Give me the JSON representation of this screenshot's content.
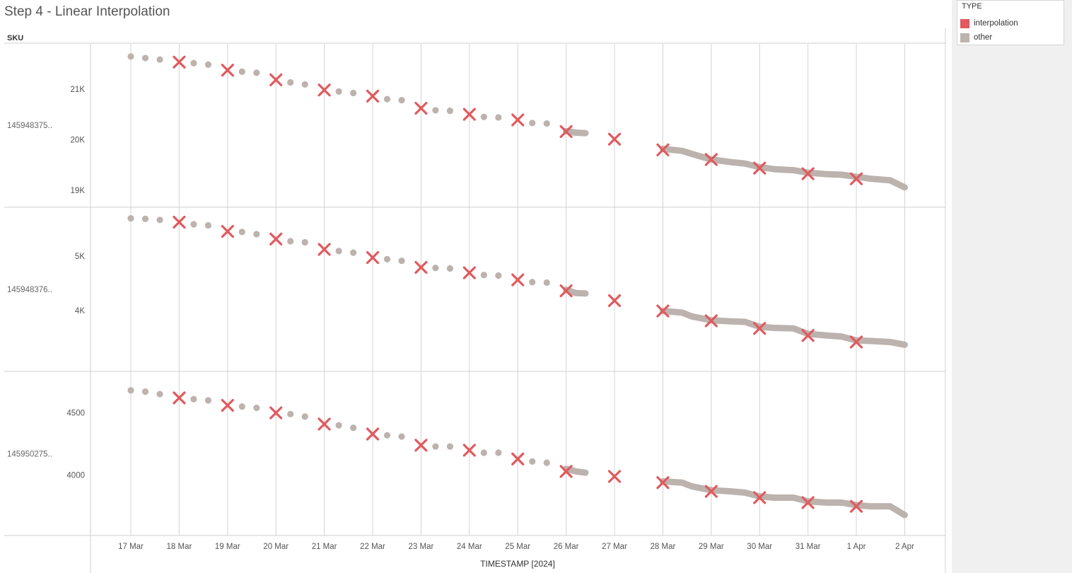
{
  "page": {
    "title": "Step 4 - Linear Interpolation"
  },
  "legend": {
    "title": "TYPE",
    "items": [
      {
        "label": "interpolation",
        "color": "#e05a5e"
      },
      {
        "label": "other",
        "color": "#bcb2ae"
      }
    ]
  },
  "chart_data": {
    "type": "scatter",
    "title": "Step 4 - Linear Interpolation",
    "row_header": "SKU",
    "xlabel": "TIMESTAMP [2024]",
    "x_categories": [
      "17 Mar",
      "18 Mar",
      "19 Mar",
      "20 Mar",
      "21 Mar",
      "22 Mar",
      "23 Mar",
      "24 Mar",
      "25 Mar",
      "26 Mar",
      "27 Mar",
      "28 Mar",
      "29 Mar",
      "30 Mar",
      "31 Mar",
      "1 Apr",
      "2 Apr"
    ],
    "x_range": [
      17,
      33
    ],
    "grid": true,
    "legend_position": "top-right",
    "marker_styles": {
      "interpolation": "x",
      "other": "circle"
    },
    "panels": [
      {
        "sku": "145948375..",
        "y_range": [
          18850,
          21750
        ],
        "y_ticks": [
          19000,
          20000,
          21000
        ],
        "y_tick_labels": [
          "19K",
          "20K",
          "21K"
        ],
        "interpolation": [
          [
            18,
            21530
          ],
          [
            19,
            21370
          ],
          [
            20,
            21180
          ],
          [
            21,
            20980
          ],
          [
            22,
            20860
          ],
          [
            23,
            20620
          ],
          [
            24,
            20500
          ],
          [
            25,
            20390
          ],
          [
            26,
            20160
          ],
          [
            27,
            20010
          ],
          [
            28,
            19800
          ],
          [
            29,
            19610
          ],
          [
            30,
            19440
          ],
          [
            31,
            19330
          ],
          [
            32,
            19230
          ]
        ],
        "other_dots": [
          [
            17,
            21640
          ],
          [
            17.3,
            21610
          ],
          [
            17.6,
            21580
          ],
          [
            18.3,
            21510
          ],
          [
            18.6,
            21480
          ],
          [
            19.3,
            21340
          ],
          [
            19.6,
            21320
          ],
          [
            20.3,
            21130
          ],
          [
            20.6,
            21090
          ],
          [
            21.3,
            20950
          ],
          [
            21.6,
            20920
          ],
          [
            22.3,
            20800
          ],
          [
            22.6,
            20780
          ],
          [
            23.3,
            20580
          ],
          [
            23.6,
            20570
          ],
          [
            24.3,
            20450
          ],
          [
            24.6,
            20440
          ],
          [
            25.3,
            20330
          ],
          [
            25.6,
            20320
          ]
        ],
        "other_lines": [
          [
            [
              26,
              20170
            ],
            [
              26.2,
              20140
            ],
            [
              26.4,
              20130
            ]
          ],
          [
            [
              28,
              19820
            ],
            [
              28.4,
              19780
            ],
            [
              28.6,
              19720
            ],
            [
              29,
              19610
            ],
            [
              29.4,
              19560
            ],
            [
              29.7,
              19530
            ],
            [
              30,
              19460
            ],
            [
              30.3,
              19420
            ],
            [
              30.7,
              19400
            ],
            [
              31,
              19350
            ],
            [
              31.4,
              19320
            ],
            [
              31.7,
              19310
            ],
            [
              32,
              19270
            ],
            [
              32.3,
              19230
            ],
            [
              32.7,
              19200
            ],
            [
              33,
              19060
            ]
          ]
        ]
      },
      {
        "sku": "145948376..",
        "y_range": [
          3050,
          5750
        ],
        "y_ticks": [
          4000,
          5000
        ],
        "y_tick_labels": [
          "4K",
          "5K"
        ],
        "interpolation": [
          [
            18,
            5620
          ],
          [
            19,
            5450
          ],
          [
            20,
            5310
          ],
          [
            21,
            5120
          ],
          [
            22,
            4970
          ],
          [
            23,
            4790
          ],
          [
            24,
            4690
          ],
          [
            25,
            4560
          ],
          [
            26,
            4360
          ],
          [
            27,
            4180
          ],
          [
            28,
            3990
          ],
          [
            29,
            3810
          ],
          [
            30,
            3670
          ],
          [
            31,
            3540
          ],
          [
            32,
            3420
          ]
        ],
        "other_dots": [
          [
            17,
            5690
          ],
          [
            17.3,
            5680
          ],
          [
            17.6,
            5660
          ],
          [
            18.3,
            5580
          ],
          [
            18.6,
            5560
          ],
          [
            19.3,
            5440
          ],
          [
            19.6,
            5400
          ],
          [
            20.3,
            5270
          ],
          [
            20.6,
            5250
          ],
          [
            21.3,
            5090
          ],
          [
            21.6,
            5060
          ],
          [
            22.3,
            4940
          ],
          [
            22.6,
            4910
          ],
          [
            23.3,
            4780
          ],
          [
            23.6,
            4770
          ],
          [
            24.3,
            4650
          ],
          [
            24.6,
            4640
          ],
          [
            25.3,
            4520
          ],
          [
            25.6,
            4510
          ]
        ],
        "other_lines": [
          [
            [
              26,
              4380
            ],
            [
              26.2,
              4320
            ],
            [
              26.4,
              4310
            ]
          ],
          [
            [
              28,
              3990
            ],
            [
              28.4,
              3960
            ],
            [
              28.6,
              3890
            ],
            [
              29,
              3820
            ],
            [
              29.4,
              3800
            ],
            [
              29.7,
              3790
            ],
            [
              30,
              3700
            ],
            [
              30.3,
              3680
            ],
            [
              30.7,
              3670
            ],
            [
              31,
              3570
            ],
            [
              31.4,
              3540
            ],
            [
              31.7,
              3520
            ],
            [
              32,
              3450
            ],
            [
              32.3,
              3440
            ],
            [
              32.7,
              3420
            ],
            [
              33,
              3370
            ]
          ]
        ]
      },
      {
        "sku": "145950275..",
        "y_range": [
          3590,
          4770
        ],
        "y_ticks": [
          4000,
          4500
        ],
        "y_tick_labels": [
          "4000",
          "4500"
        ],
        "interpolation": [
          [
            18,
            4620
          ],
          [
            19,
            4560
          ],
          [
            20,
            4500
          ],
          [
            21,
            4410
          ],
          [
            22,
            4330
          ],
          [
            23,
            4240
          ],
          [
            24,
            4200
          ],
          [
            25,
            4130
          ],
          [
            26,
            4030
          ],
          [
            27,
            3990
          ],
          [
            28,
            3940
          ],
          [
            29,
            3870
          ],
          [
            30,
            3820
          ],
          [
            31,
            3780
          ],
          [
            32,
            3750
          ]
        ],
        "other_dots": [
          [
            17,
            4680
          ],
          [
            17.3,
            4670
          ],
          [
            17.6,
            4650
          ],
          [
            18.3,
            4610
          ],
          [
            18.6,
            4600
          ],
          [
            19.3,
            4550
          ],
          [
            19.6,
            4540
          ],
          [
            20.3,
            4490
          ],
          [
            20.6,
            4470
          ],
          [
            21.3,
            4400
          ],
          [
            21.6,
            4380
          ],
          [
            22.3,
            4320
          ],
          [
            22.6,
            4310
          ],
          [
            23.3,
            4230
          ],
          [
            23.6,
            4230
          ],
          [
            24.3,
            4180
          ],
          [
            24.6,
            4180
          ],
          [
            25.3,
            4110
          ],
          [
            25.6,
            4100
          ]
        ],
        "other_lines": [
          [
            [
              26,
              4050
            ],
            [
              26.2,
              4030
            ],
            [
              26.4,
              4020
            ]
          ],
          [
            [
              28,
              3950
            ],
            [
              28.4,
              3940
            ],
            [
              28.6,
              3910
            ],
            [
              29,
              3880
            ],
            [
              29.4,
              3870
            ],
            [
              29.7,
              3860
            ],
            [
              30,
              3830
            ],
            [
              30.3,
              3820
            ],
            [
              30.7,
              3820
            ],
            [
              31,
              3790
            ],
            [
              31.4,
              3780
            ],
            [
              31.7,
              3780
            ],
            [
              32,
              3760
            ],
            [
              32.3,
              3750
            ],
            [
              32.7,
              3750
            ],
            [
              33,
              3680
            ]
          ]
        ]
      }
    ]
  }
}
